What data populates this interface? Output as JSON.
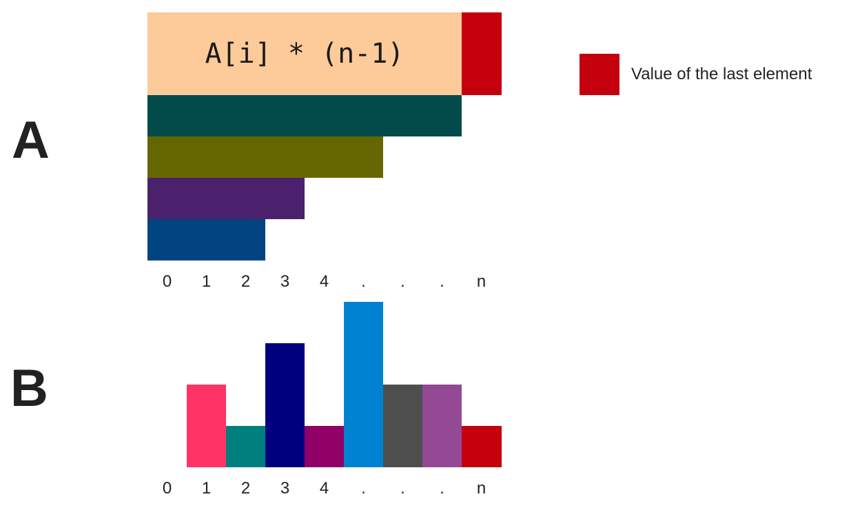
{
  "panels": {
    "a": {
      "label": "A"
    },
    "b": {
      "label": "B"
    }
  },
  "legend": {
    "text": "Value of the last element",
    "color": "#c4000d"
  },
  "chart_data": [
    {
      "type": "bar",
      "orientation": "horizontal",
      "panel": "A",
      "formula": "A[i] * (n-1)",
      "x_tick_labels": [
        "0",
        "1",
        "2",
        "3",
        "4",
        ".",
        ".",
        ".",
        "n"
      ],
      "bars": [
        {
          "length_units": 8,
          "color": "#fdca99",
          "overhang_units": 1,
          "overhang_color": "#c4000d"
        },
        {
          "length_units": 8,
          "color": "#024b4a"
        },
        {
          "length_units": 6,
          "color": "#666600"
        },
        {
          "length_units": 4,
          "color": "#4b206c"
        },
        {
          "length_units": 3,
          "color": "#024482"
        }
      ]
    },
    {
      "type": "bar",
      "panel": "B",
      "categories": [
        "0",
        "1",
        "2",
        "3",
        "4",
        ".",
        ".",
        ".",
        "n"
      ],
      "values": [
        0,
        2,
        1,
        3,
        1,
        4,
        2,
        2,
        1
      ],
      "colors": [
        "#ffffff",
        "#ff3366",
        "#007f7f",
        "#00007f",
        "#910066",
        "#0082d2",
        "#4e4e4e",
        "#934994",
        "#c4000d"
      ]
    }
  ]
}
